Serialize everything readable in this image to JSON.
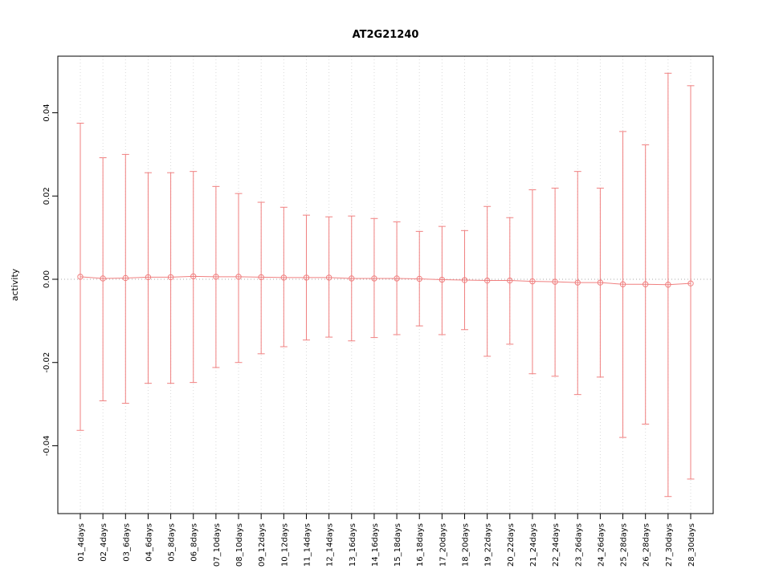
{
  "chart_data": {
    "type": "errorbar",
    "title": "AT2G21240",
    "xlabel": "",
    "ylabel": "activity",
    "ylim": [
      -0.0563,
      0.0536
    ],
    "yticks": [
      -0.04,
      -0.02,
      0.0,
      0.02,
      0.04
    ],
    "ytick_labels": [
      "-0.04",
      "-0.02",
      "0.00",
      "0.02",
      "0.04"
    ],
    "grid": "dotted vertical line at each category; dotted horizontal line at y=0",
    "legend": "none",
    "colors": {
      "series": "#f08080",
      "grid": "#d9d9d9",
      "zero_line": "#aaaaaa",
      "border": "#000000"
    },
    "categories": [
      "01_4days",
      "02_4days",
      "03_6days",
      "04_6days",
      "05_8days",
      "06_8days",
      "07_10days",
      "08_10days",
      "09_12days",
      "10_12days",
      "11_14days",
      "12_14days",
      "13_16days",
      "14_16days",
      "15_18days",
      "16_18days",
      "17_20days",
      "18_20days",
      "19_22days",
      "20_22days",
      "21_24days",
      "22_24days",
      "23_26days",
      "24_26days",
      "25_28days",
      "26_28days",
      "27_30days",
      "28_30days"
    ],
    "centers": [
      0.0006,
      0.0002,
      0.0003,
      0.0005,
      0.0005,
      0.0007,
      0.0006,
      0.0006,
      0.0005,
      0.0004,
      0.0004,
      0.0004,
      0.0002,
      0.0002,
      0.0002,
      0.0001,
      -0.0001,
      -0.0002,
      -0.0003,
      -0.0003,
      -0.0005,
      -0.0006,
      -0.0008,
      -0.0008,
      -0.0012,
      -0.0012,
      -0.0013,
      -0.001
    ],
    "uppers": [
      0.0375,
      0.0292,
      0.03,
      0.0256,
      0.0256,
      0.0259,
      0.0223,
      0.0206,
      0.0185,
      0.0173,
      0.0154,
      0.015,
      0.0152,
      0.0146,
      0.0138,
      0.0115,
      0.0127,
      0.0117,
      0.0175,
      0.0148,
      0.0215,
      0.0219,
      0.0259,
      0.0219,
      0.0355,
      0.0323,
      0.0495,
      0.0465
    ],
    "lowers": [
      -0.0363,
      -0.0292,
      -0.0298,
      -0.025,
      -0.025,
      -0.0248,
      -0.0212,
      -0.02,
      -0.0179,
      -0.0162,
      -0.0146,
      -0.0139,
      -0.0148,
      -0.014,
      -0.0133,
      -0.0112,
      -0.0133,
      -0.0121,
      -0.0185,
      -0.0156,
      -0.0227,
      -0.0233,
      -0.0277,
      -0.0235,
      -0.038,
      -0.0348,
      -0.0522,
      -0.048
    ]
  }
}
